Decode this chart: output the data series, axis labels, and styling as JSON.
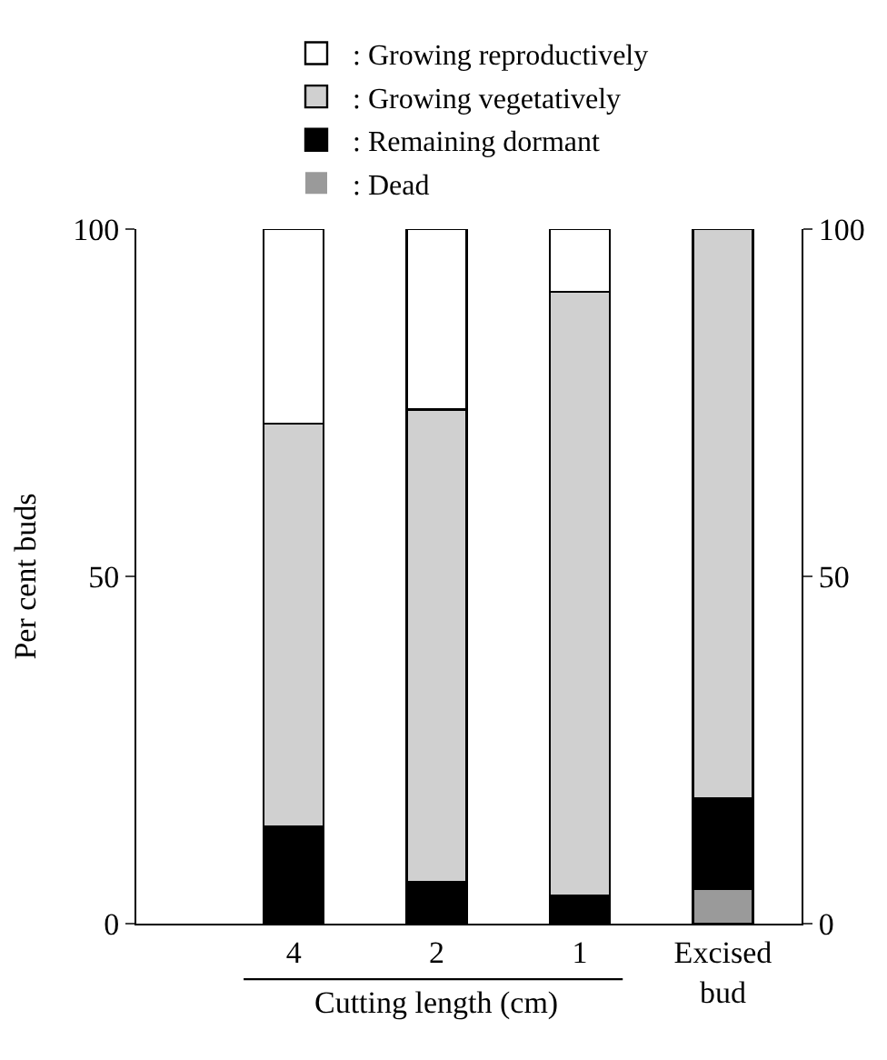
{
  "chart_data": {
    "type": "bar",
    "stacked": true,
    "ylabel": "Per cent buds",
    "xlabel": "Cutting length (cm)",
    "categories": [
      "4",
      "2",
      "1",
      "Excised bud"
    ],
    "series": [
      {
        "name": ": Dead",
        "color": "#9a9a9a",
        "values": [
          0,
          0,
          0,
          5
        ]
      },
      {
        "name": ": Remaining dormant",
        "color": "#000000",
        "values": [
          14,
          6,
          4,
          13
        ]
      },
      {
        "name": ": Growing vegetatively",
        "color": "#d0d0d0",
        "values": [
          58,
          68,
          87,
          82
        ]
      },
      {
        "name": ": Growing reproductively",
        "color": "#ffffff",
        "values": [
          28,
          26,
          9,
          0
        ]
      }
    ],
    "ylim": [
      0,
      100
    ],
    "yticks": [
      0,
      50,
      100
    ],
    "y2lim": [
      0,
      100
    ],
    "y2ticks": [
      0,
      50,
      100
    ],
    "legend": "top"
  }
}
